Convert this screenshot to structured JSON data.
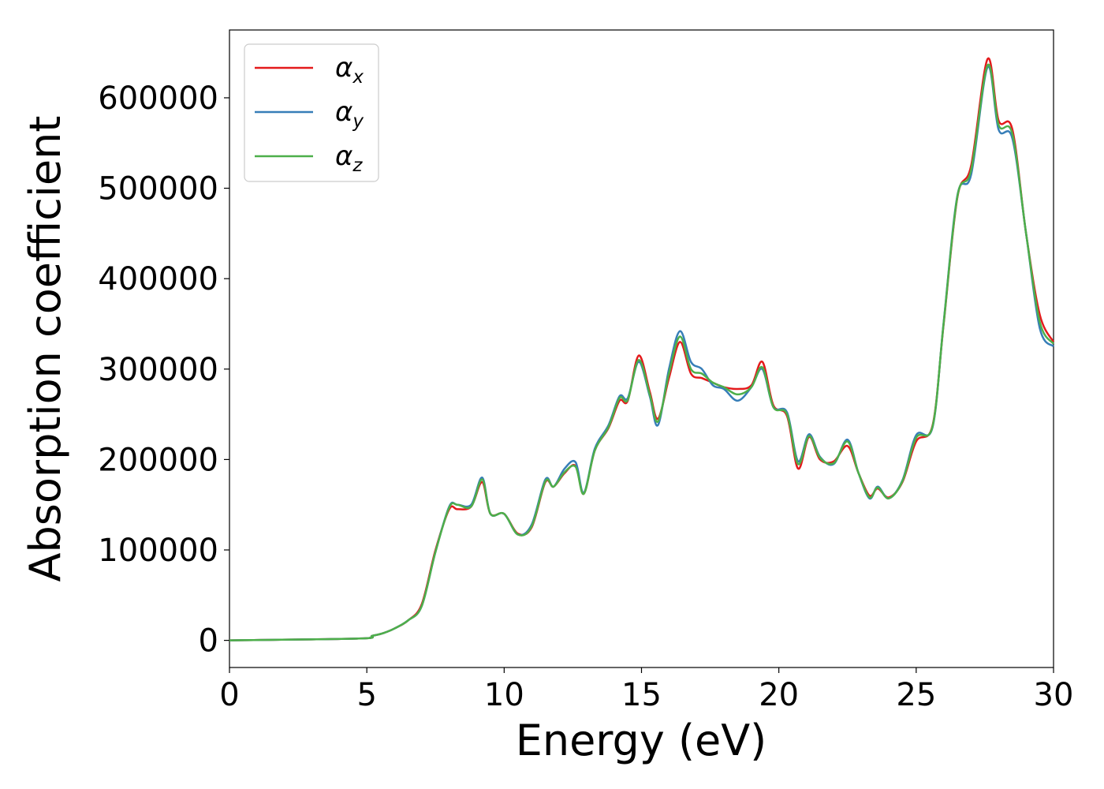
{
  "chart_data": {
    "type": "line",
    "title": "",
    "xlabel": "Energy (eV)",
    "ylabel": "Absorption coefficient",
    "xlim": [
      0,
      30
    ],
    "ylim": [
      -30000,
      675000
    ],
    "xticks": [
      0,
      5,
      10,
      15,
      20,
      25,
      30
    ],
    "xtick_labels": [
      "0",
      "5",
      "10",
      "15",
      "20",
      "25",
      "30"
    ],
    "yticks": [
      0,
      100000,
      200000,
      300000,
      400000,
      500000,
      600000
    ],
    "ytick_labels": [
      "0",
      "100000",
      "200000",
      "300000",
      "400000",
      "500000",
      "600000"
    ],
    "grid": false,
    "legend_position": "top-left",
    "x": [
      0,
      4.7,
      5.2,
      5.6,
      6.0,
      6.5,
      7.0,
      7.5,
      8.0,
      8.3,
      8.8,
      9.2,
      9.5,
      10.0,
      10.5,
      11.0,
      11.5,
      11.8,
      12.2,
      12.6,
      12.9,
      13.3,
      13.8,
      14.2,
      14.5,
      14.9,
      15.3,
      15.6,
      16.0,
      16.4,
      16.8,
      17.2,
      17.6,
      18.0,
      18.5,
      19.0,
      19.4,
      19.8,
      20.3,
      20.7,
      21.1,
      21.5,
      22.0,
      22.5,
      22.9,
      23.3,
      23.6,
      24.0,
      24.5,
      25.0,
      25.6,
      26.0,
      26.5,
      27.0,
      27.6,
      28.0,
      28.5,
      29.0,
      29.5,
      30.0
    ],
    "series": [
      {
        "name": "αx",
        "color": "#e41a1c",
        "values": [
          0,
          2000,
          5000,
          8000,
          13000,
          22000,
          40000,
          100000,
          145000,
          145000,
          148000,
          175000,
          140000,
          140000,
          118000,
          125000,
          175000,
          170000,
          185000,
          193000,
          162000,
          210000,
          235000,
          265000,
          265000,
          315000,
          275000,
          245000,
          290000,
          330000,
          295000,
          290000,
          285000,
          280000,
          278000,
          282000,
          308000,
          260000,
          248000,
          190000,
          225000,
          200000,
          198000,
          215000,
          185000,
          160000,
          168000,
          158000,
          175000,
          220000,
          238000,
          350000,
          490000,
          525000,
          643000,
          575000,
          565000,
          450000,
          360000,
          330000
        ]
      },
      {
        "name": "αy",
        "color": "#377eb8",
        "values": [
          0,
          2000,
          5000,
          8000,
          13000,
          22000,
          38000,
          98000,
          148000,
          150000,
          150000,
          180000,
          140000,
          140000,
          117000,
          128000,
          178000,
          170000,
          190000,
          197000,
          163000,
          212000,
          238000,
          270000,
          268000,
          308000,
          270000,
          238000,
          300000,
          342000,
          308000,
          300000,
          282000,
          278000,
          265000,
          280000,
          300000,
          258000,
          252000,
          198000,
          228000,
          203000,
          195000,
          222000,
          185000,
          157000,
          170000,
          157000,
          177000,
          227000,
          236000,
          352000,
          492000,
          515000,
          634000,
          565000,
          555000,
          450000,
          345000,
          325000
        ]
      },
      {
        "name": "αz",
        "color": "#4daf4a",
        "values": [
          0,
          2000,
          5000,
          8000,
          13000,
          22000,
          38000,
          98000,
          147000,
          150000,
          148000,
          178000,
          140000,
          140000,
          117000,
          126000,
          176000,
          170000,
          186000,
          192000,
          162000,
          210000,
          236000,
          268000,
          266000,
          310000,
          272000,
          242000,
          295000,
          336000,
          300000,
          295000,
          285000,
          280000,
          272000,
          280000,
          302000,
          258000,
          250000,
          195000,
          226000,
          202000,
          196000,
          220000,
          185000,
          158000,
          169000,
          157000,
          176000,
          224000,
          237000,
          351000,
          491000,
          520000,
          636000,
          570000,
          560000,
          450000,
          352000,
          328000
        ]
      }
    ]
  }
}
